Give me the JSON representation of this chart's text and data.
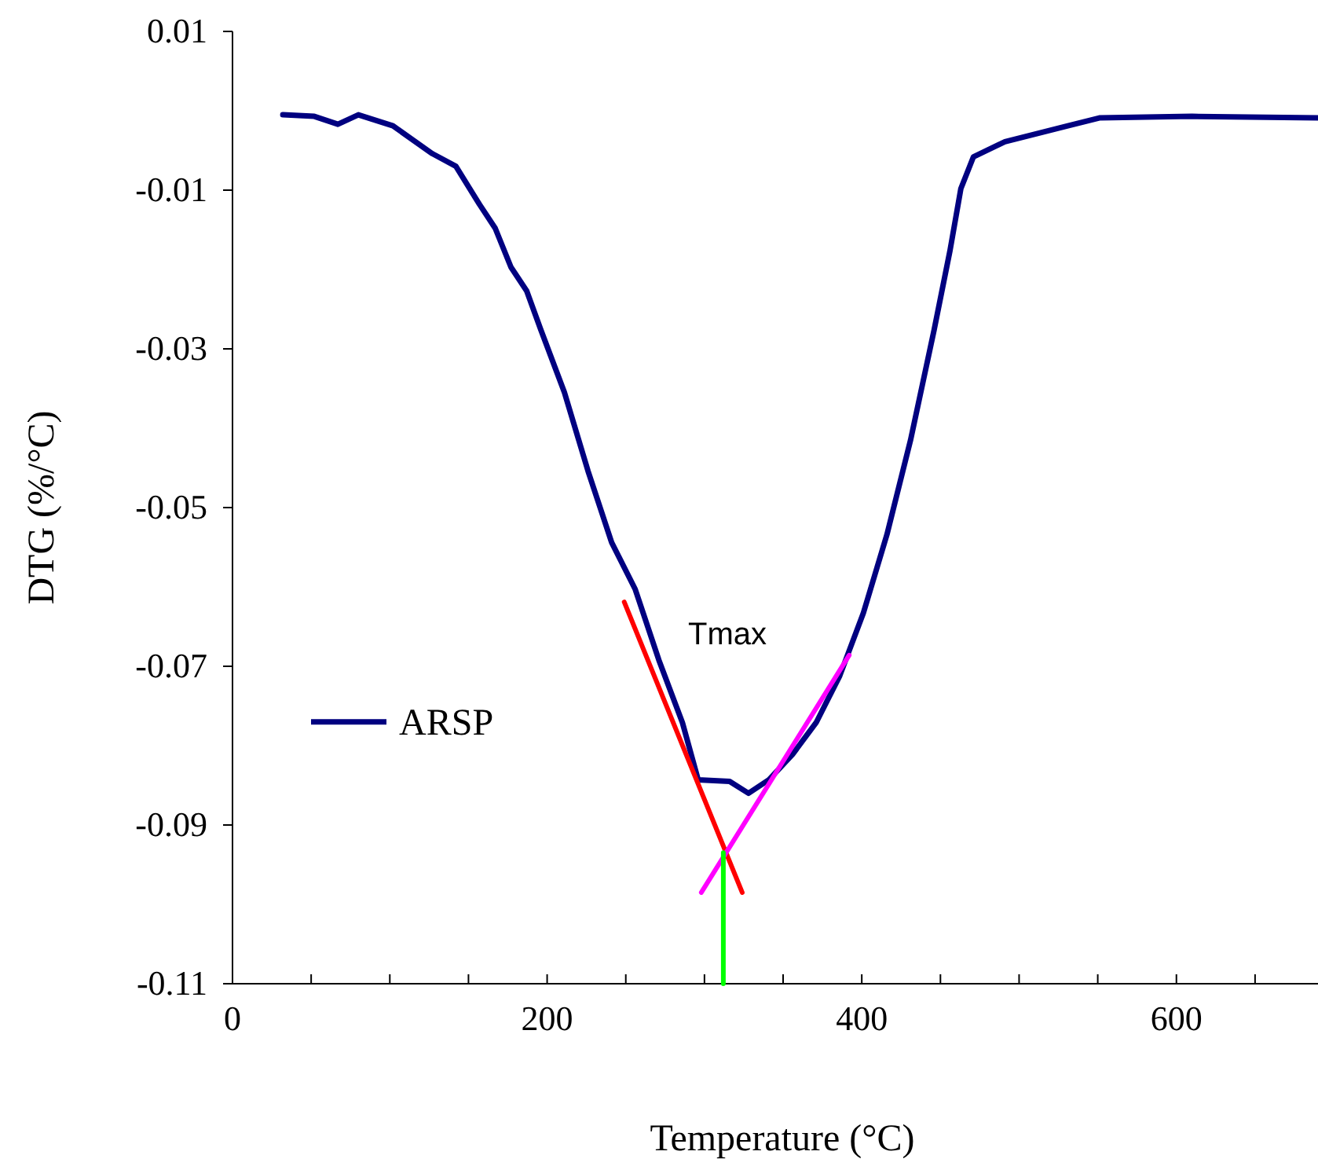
{
  "chart_data": {
    "type": "line",
    "xlabel": "Temperature (°C)",
    "ylabel": "DTG (%/°C)",
    "xlim": [
      0,
      690
    ],
    "ylim": [
      -0.11,
      0.01
    ],
    "xticks": [
      0,
      {
        "value": 50,
        "label": null
      },
      200,
      {
        "value": 100,
        "label": null
      },
      {
        "value": 150,
        "label": null
      },
      {
        "value": 250,
        "label": null
      },
      {
        "value": 300,
        "label": null
      },
      {
        "value": 350,
        "label": null
      },
      400,
      {
        "value": 450,
        "label": null
      },
      {
        "value": 500,
        "label": null
      },
      {
        "value": 550,
        "label": null
      },
      600,
      {
        "value": 650,
        "label": null
      }
    ],
    "yticks": [
      -0.11,
      -0.09,
      -0.07,
      -0.05,
      -0.03,
      -0.01,
      0.01
    ],
    "grid": false,
    "legend": "left",
    "marker": "none",
    "line_style": "solid",
    "annotations": [
      "Tmax"
    ],
    "series": [
      {
        "name": "ARSP",
        "color": "#000080",
        "x": [
          32,
          52,
          67,
          80,
          102,
          127,
          142,
          157,
          167,
          177,
          187,
          196,
          211,
          226,
          241,
          256,
          271,
          286,
          296,
          316,
          328,
          341,
          356,
          371,
          386,
          401,
          416,
          431,
          446,
          456,
          463,
          471,
          491,
          531,
          551,
          610,
          690
        ],
        "values": [
          -0.0005,
          -0.0007,
          -0.0017,
          -0.0005,
          -0.0019,
          -0.0054,
          -0.007,
          -0.0118,
          -0.0148,
          -0.0197,
          -0.0227,
          -0.0276,
          -0.0355,
          -0.0454,
          -0.0544,
          -0.0603,
          -0.0692,
          -0.0771,
          -0.0843,
          -0.0845,
          -0.086,
          -0.0843,
          -0.0811,
          -0.0771,
          -0.0712,
          -0.0633,
          -0.0534,
          -0.0415,
          -0.0276,
          -0.0177,
          -0.0098,
          -0.0058,
          -0.0039,
          -0.0019,
          -0.0009,
          -0.0007,
          -0.0009
        ]
      },
      {
        "type": "line",
        "color": "#ff0000",
        "x": [
          249,
          324
        ],
        "values": [
          -0.0619,
          -0.0985
        ]
      },
      {
        "type": "line",
        "color": "#ff00ff",
        "x": [
          298,
          392
        ],
        "values": [
          -0.0985,
          -0.0686
        ]
      },
      {
        "type": "line",
        "color": "#00ff00",
        "x": [
          312,
          312
        ],
        "values": [
          -0.11,
          -0.0935
        ]
      }
    ]
  }
}
